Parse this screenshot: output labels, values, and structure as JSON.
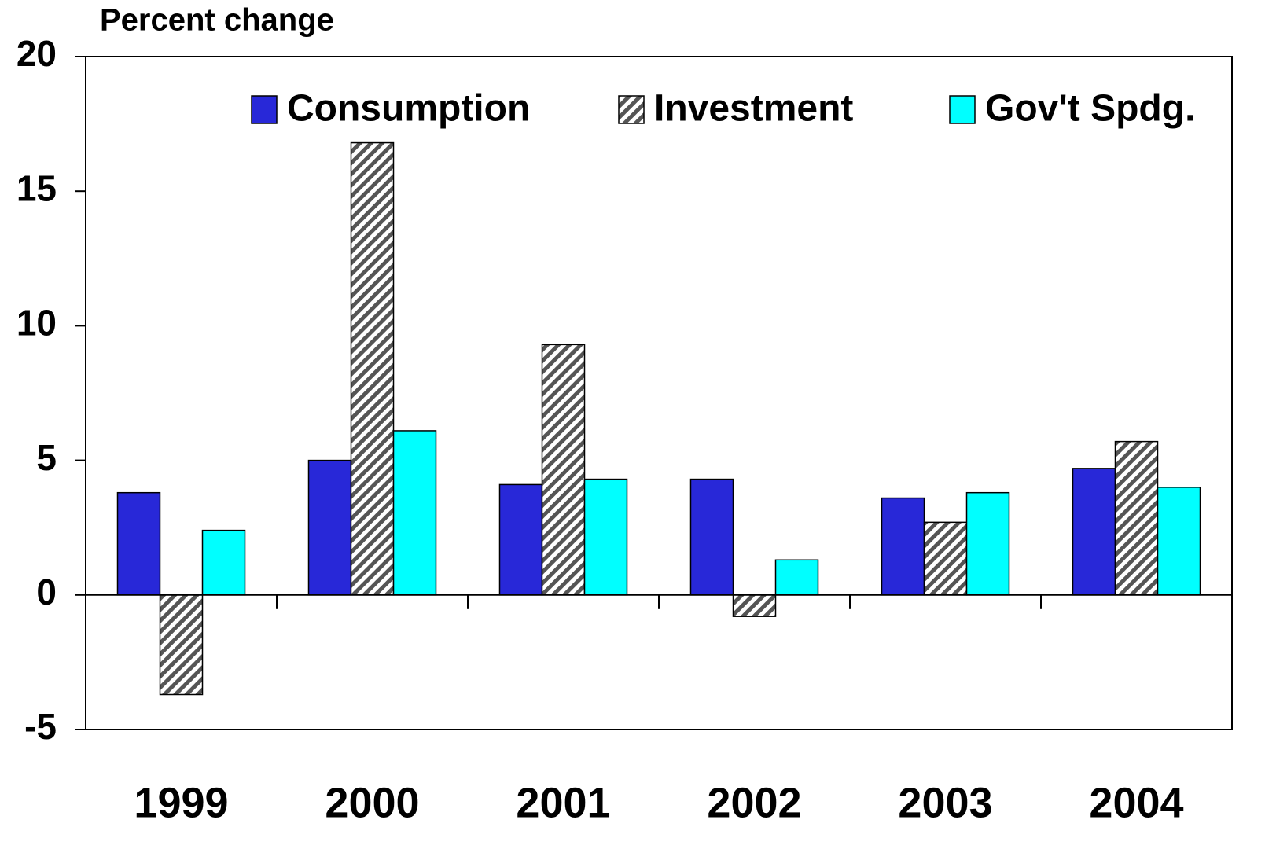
{
  "chart_data": {
    "type": "bar",
    "ylabel": "Percent change",
    "categories": [
      "1999",
      "2000",
      "2001",
      "2002",
      "2003",
      "2004"
    ],
    "series": [
      {
        "name": "Consumption",
        "color": "#2828d8",
        "values": [
          3.8,
          5.0,
          4.1,
          4.3,
          3.6,
          4.7
        ]
      },
      {
        "name": "Investment",
        "color": "#555555",
        "pattern": "hatch",
        "values": [
          -3.7,
          16.8,
          9.3,
          -0.8,
          2.7,
          5.7
        ]
      },
      {
        "name": "Gov't Spdg.",
        "color": "#00ffff",
        "values": [
          2.4,
          6.1,
          4.3,
          1.3,
          3.8,
          4.0
        ]
      }
    ],
    "ylim": [
      -5,
      20
    ],
    "yticks": [
      -5,
      0,
      5,
      10,
      15,
      20
    ],
    "grid": false,
    "legend": "top"
  }
}
